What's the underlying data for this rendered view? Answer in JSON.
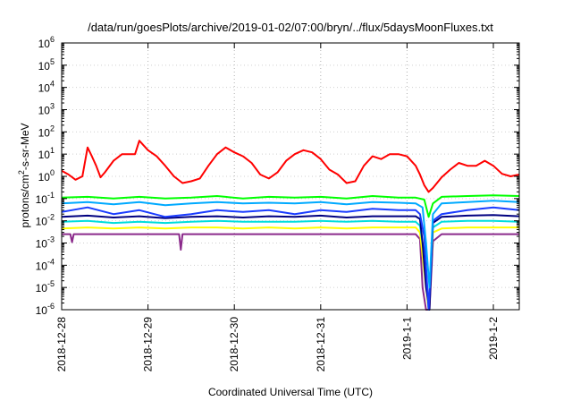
{
  "chart_data": {
    "type": "line",
    "title": "/data/run/goesPlots/archive/2019-01-02/07:00/bryn/../flux/5daysMoonFluxes.txt",
    "xlabel": "Coordinated Universal Time (UTC)",
    "ylabel_parts": [
      "protons/cm",
      "2",
      "-s-sr-MeV"
    ],
    "y_scale": "log",
    "ylim_exp": [
      -6,
      6
    ],
    "y_ticks": [
      {
        "base": "10",
        "exp": "-6"
      },
      {
        "base": "10",
        "exp": "-5"
      },
      {
        "base": "10",
        "exp": "-4"
      },
      {
        "base": "10",
        "exp": "-3"
      },
      {
        "base": "10",
        "exp": "-2"
      },
      {
        "base": "10",
        "exp": "-1"
      },
      {
        "base": "10",
        "exp": "0"
      },
      {
        "base": "10",
        "exp": "1"
      },
      {
        "base": "10",
        "exp": "2"
      },
      {
        "base": "10",
        "exp": "3"
      },
      {
        "base": "10",
        "exp": "4"
      },
      {
        "base": "10",
        "exp": "5"
      },
      {
        "base": "10",
        "exp": "6"
      }
    ],
    "x_unit": "days",
    "xlim": [
      0,
      5.3
    ],
    "x_ticks": [
      {
        "label": "2018-12-28",
        "x": 0
      },
      {
        "label": "2018-12-29",
        "x": 1
      },
      {
        "label": "2018-12-30",
        "x": 2
      },
      {
        "label": "2018-12-31",
        "x": 3
      },
      {
        "label": "2019-1-1",
        "x": 4
      },
      {
        "label": "2019-1-2",
        "x": 5
      }
    ],
    "series": [
      {
        "color": "#ff0000",
        "x": [
          0,
          0.08,
          0.16,
          0.24,
          0.3,
          0.35,
          0.4,
          0.45,
          0.5,
          0.6,
          0.7,
          0.85,
          0.9,
          1.0,
          1.1,
          1.2,
          1.3,
          1.4,
          1.5,
          1.6,
          1.7,
          1.8,
          1.9,
          2.0,
          2.1,
          2.2,
          2.3,
          2.4,
          2.5,
          2.6,
          2.7,
          2.8,
          2.9,
          3.0,
          3.1,
          3.2,
          3.3,
          3.4,
          3.5,
          3.6,
          3.7,
          3.8,
          3.9,
          4.0,
          4.1,
          4.15,
          4.2,
          4.25,
          4.3,
          4.4,
          4.5,
          4.6,
          4.7,
          4.8,
          4.9,
          5.0,
          5.1,
          5.2,
          5.3
        ],
        "y": [
          1.8,
          1.2,
          0.7,
          1.0,
          20,
          8,
          3,
          0.9,
          1.5,
          5,
          10,
          10,
          40,
          15,
          8,
          3,
          1,
          0.5,
          0.6,
          0.8,
          3,
          10,
          20,
          12,
          8,
          4,
          1.2,
          0.8,
          1.5,
          5,
          10,
          15,
          12,
          6,
          2,
          1.2,
          0.5,
          0.6,
          3,
          8,
          6,
          10,
          10,
          8,
          3,
          1.2,
          0.4,
          0.2,
          0.3,
          0.9,
          2,
          4,
          3,
          3,
          5,
          3,
          1.3,
          1.0,
          1.2
        ]
      },
      {
        "color": "#00ff00",
        "x": [
          0,
          0.3,
          0.6,
          0.9,
          1.2,
          1.5,
          1.8,
          2.1,
          2.4,
          2.7,
          3.0,
          3.3,
          3.6,
          3.9,
          4.1,
          4.2,
          4.25,
          4.3,
          4.4,
          4.7,
          5.0,
          5.3
        ],
        "y": [
          0.11,
          0.12,
          0.1,
          0.12,
          0.1,
          0.11,
          0.13,
          0.1,
          0.12,
          0.11,
          0.12,
          0.1,
          0.13,
          0.11,
          0.11,
          0.09,
          0.015,
          0.06,
          0.12,
          0.13,
          0.14,
          0.13
        ]
      },
      {
        "color": "#00aaff",
        "x": [
          0,
          0.3,
          0.6,
          0.9,
          1.2,
          1.5,
          1.8,
          2.1,
          2.4,
          2.7,
          3.0,
          3.3,
          3.6,
          3.9,
          4.1,
          4.18,
          4.22,
          4.26,
          4.3,
          4.4,
          4.7,
          5.0,
          5.3
        ],
        "y": [
          0.06,
          0.07,
          0.055,
          0.07,
          0.05,
          0.06,
          0.07,
          0.06,
          0.065,
          0.06,
          0.07,
          0.055,
          0.07,
          0.065,
          0.06,
          0.04,
          0.001,
          1e-05,
          0.02,
          0.06,
          0.07,
          0.08,
          0.07
        ]
      },
      {
        "color": "#1a3cff",
        "x": [
          0,
          0.3,
          0.6,
          0.9,
          1.2,
          1.5,
          1.8,
          2.1,
          2.4,
          2.7,
          3.0,
          3.3,
          3.6,
          3.9,
          4.1,
          4.15,
          4.2,
          4.25,
          4.3,
          4.4,
          4.7,
          5.0,
          5.3
        ],
        "y": [
          0.025,
          0.04,
          0.02,
          0.03,
          0.015,
          0.02,
          0.03,
          0.025,
          0.03,
          0.02,
          0.03,
          0.025,
          0.035,
          0.03,
          0.03,
          0.02,
          0.002,
          1e-06,
          0.01,
          0.02,
          0.03,
          0.04,
          0.03
        ]
      },
      {
        "color": "#000080",
        "x": [
          0,
          0.3,
          0.6,
          0.9,
          1.2,
          1.5,
          1.8,
          2.1,
          2.4,
          2.7,
          3.0,
          3.3,
          3.6,
          3.9,
          4.1,
          4.15,
          4.18,
          4.22,
          4.26,
          4.3,
          4.4,
          4.7,
          5.0,
          5.3
        ],
        "y": [
          0.015,
          0.017,
          0.014,
          0.016,
          0.013,
          0.015,
          0.016,
          0.014,
          0.016,
          0.015,
          0.017,
          0.014,
          0.016,
          0.016,
          0.016,
          0.012,
          0.001,
          1e-05,
          1e-06,
          0.008,
          0.015,
          0.017,
          0.018,
          0.016
        ]
      },
      {
        "color": "#00dddd",
        "x": [
          0,
          0.3,
          0.6,
          0.9,
          1.2,
          1.5,
          1.8,
          2.1,
          2.4,
          2.7,
          3.0,
          3.3,
          3.6,
          3.9,
          4.1,
          4.15,
          4.2,
          4.25,
          4.3,
          4.4,
          4.7,
          5.0,
          5.3
        ],
        "y": [
          0.009,
          0.01,
          0.008,
          0.009,
          0.008,
          0.009,
          0.01,
          0.009,
          0.009,
          0.009,
          0.01,
          0.009,
          0.01,
          0.009,
          0.009,
          0.006,
          0.0003,
          1e-06,
          0.005,
          0.009,
          0.01,
          0.01,
          0.009
        ]
      },
      {
        "color": "#ffff00",
        "x": [
          0,
          0.3,
          0.6,
          0.9,
          1.2,
          1.5,
          1.8,
          2.1,
          2.4,
          2.7,
          3.0,
          3.3,
          3.6,
          3.9,
          4.1,
          4.15,
          4.2,
          4.25,
          4.3,
          4.4,
          4.7,
          5.0,
          5.3
        ],
        "y": [
          0.0045,
          0.005,
          0.0045,
          0.005,
          0.0045,
          0.005,
          0.005,
          0.0045,
          0.005,
          0.0045,
          0.005,
          0.0045,
          0.005,
          0.005,
          0.005,
          0.003,
          5e-05,
          1e-06,
          0.003,
          0.0045,
          0.005,
          0.005,
          0.005
        ]
      },
      {
        "color": "#8b2a8b",
        "x": [
          0,
          0.1,
          0.12,
          0.14,
          0.3,
          0.6,
          0.9,
          1.2,
          1.36,
          1.38,
          1.4,
          1.6,
          1.8,
          2.1,
          2.4,
          2.7,
          3.0,
          3.3,
          3.6,
          3.9,
          4.1,
          4.15,
          4.18,
          4.22,
          4.26,
          4.3,
          4.4,
          4.7,
          5.0,
          5.3
        ],
        "y": [
          0.0025,
          0.0025,
          0.0011,
          0.0025,
          0.0025,
          0.0025,
          0.0025,
          0.0025,
          0.0025,
          0.0005,
          0.0025,
          0.0025,
          0.0025,
          0.0025,
          0.0025,
          0.0025,
          0.0025,
          0.0025,
          0.0025,
          0.0025,
          0.0025,
          0.0015,
          1e-05,
          1e-06,
          1e-06,
          0.0012,
          0.0025,
          0.0025,
          0.0025,
          0.0025
        ]
      }
    ]
  }
}
